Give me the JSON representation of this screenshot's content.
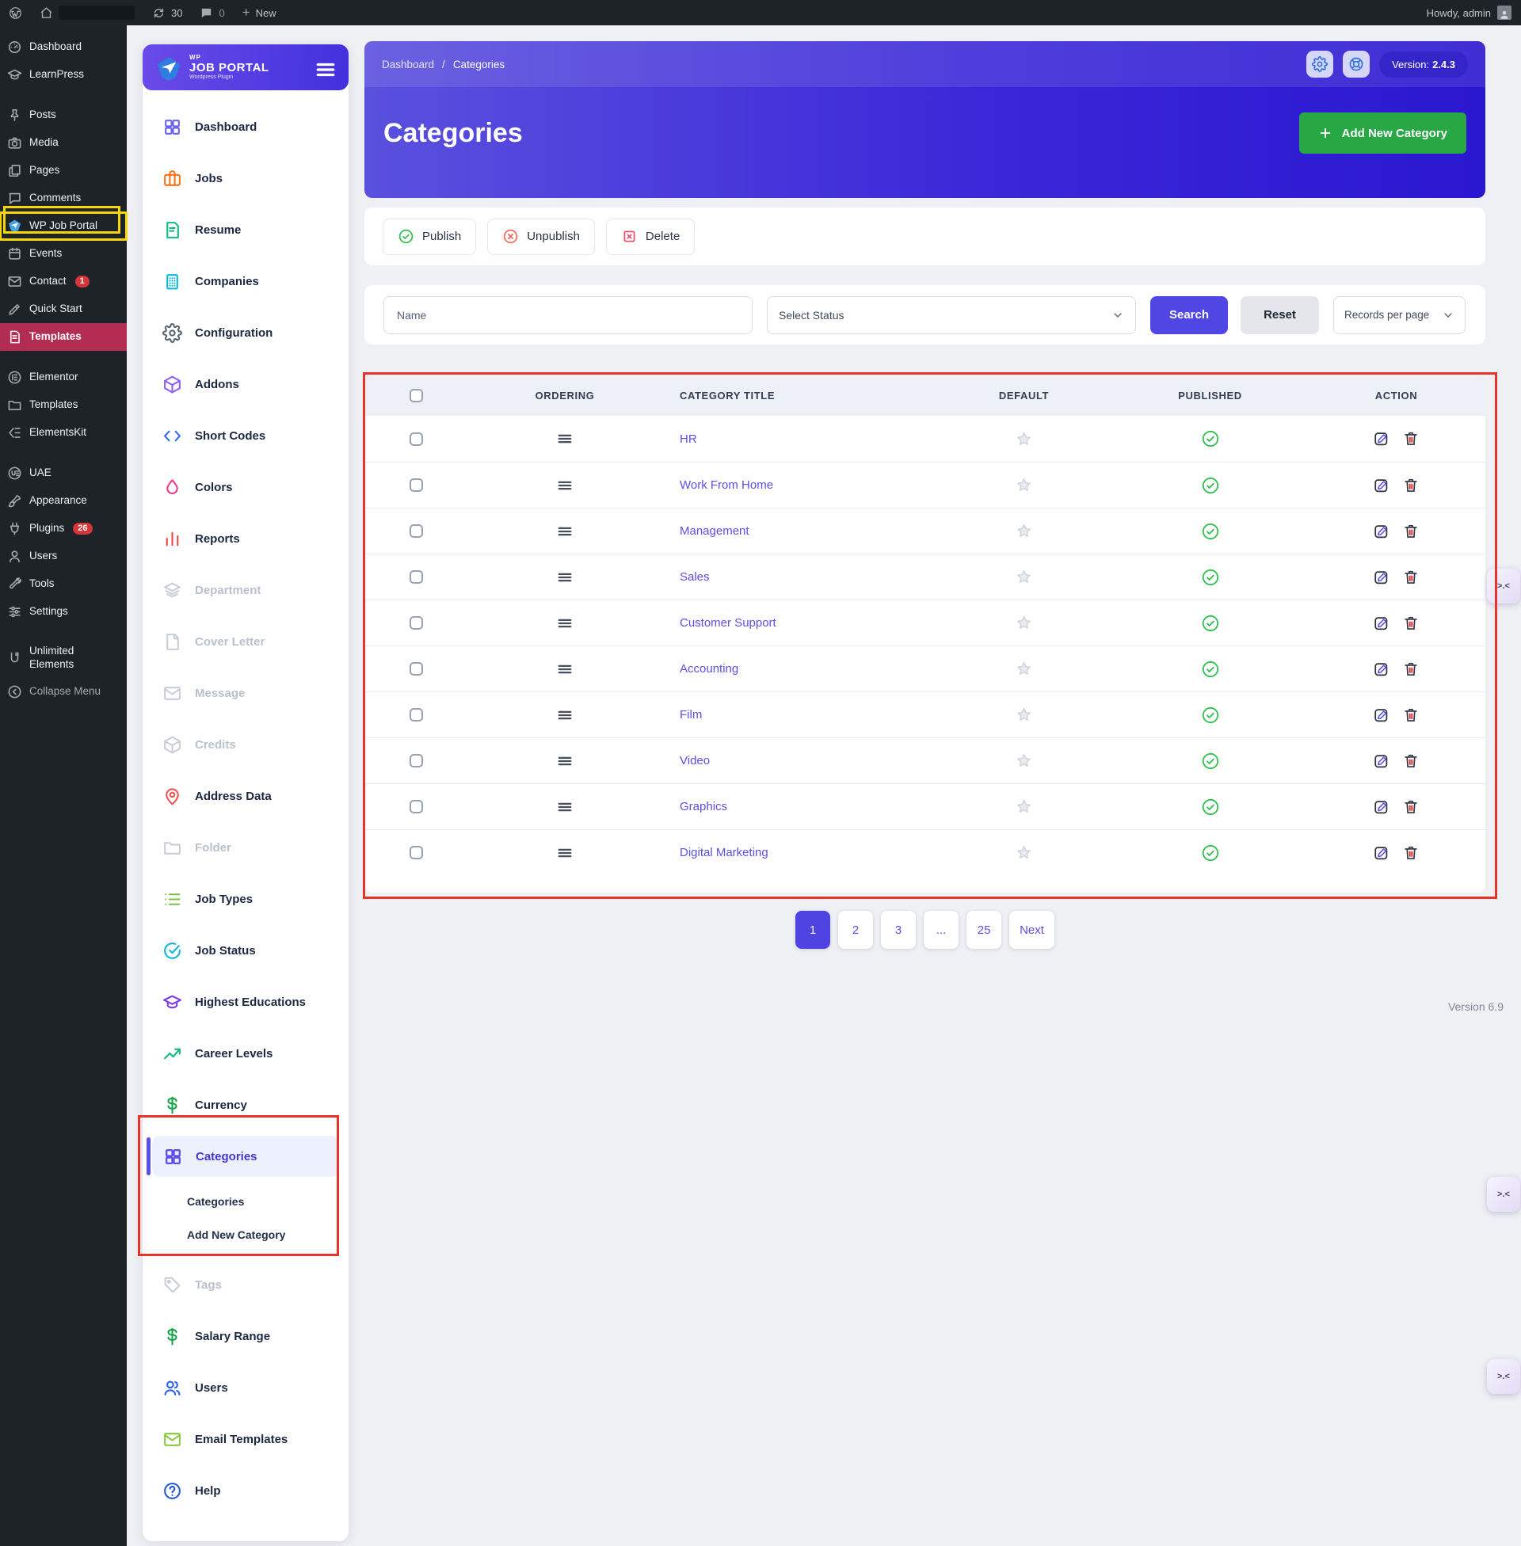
{
  "colors": {
    "accent": "#5046e4",
    "link": "#5b4fe6",
    "green": "#28a745",
    "pub": "#2fbf4f",
    "ann_red": "#e8332a",
    "ann_yellow": "#f5d609",
    "side_active": "#b32d52",
    "grad1": "#5a50de",
    "grad2": "#2a17d0"
  },
  "admin_bar": {
    "updates_count": "30",
    "comments_count": "0",
    "new_label": "New",
    "howdy": "Howdy, admin"
  },
  "wp_sidebar": {
    "items": [
      {
        "label": "Dashboard",
        "icon": "gauge"
      },
      {
        "label": "LearnPress",
        "icon": "mortarboard"
      },
      {
        "gap": true
      },
      {
        "label": "Posts",
        "icon": "pin"
      },
      {
        "label": "Media",
        "icon": "camera"
      },
      {
        "label": "Pages",
        "icon": "pages"
      },
      {
        "label": "Comments",
        "icon": "comment"
      },
      {
        "label": "WP Job Portal",
        "icon": "job-portal-plane",
        "state": "highlight"
      },
      {
        "label": "Events",
        "icon": "calendar"
      },
      {
        "label": "Contact",
        "icon": "envelope",
        "badge": "1"
      },
      {
        "label": "Quick Start",
        "icon": "pen"
      },
      {
        "label": "Templates",
        "icon": "document",
        "state": "active"
      },
      {
        "gap": true
      },
      {
        "label": "Elementor",
        "icon": "elementor"
      },
      {
        "label": "Templates",
        "icon": "folder"
      },
      {
        "label": "ElementsKit",
        "icon": "elementskit"
      },
      {
        "gap": true
      },
      {
        "label": "UAE",
        "icon": "uae"
      },
      {
        "label": "Appearance",
        "icon": "brush"
      },
      {
        "label": "Plugins",
        "icon": "plug",
        "badge": "26"
      },
      {
        "label": "Users",
        "icon": "user"
      },
      {
        "label": "Tools",
        "icon": "wrench"
      },
      {
        "label": "Settings",
        "icon": "sliders"
      },
      {
        "gap": true
      },
      {
        "label": "Unlimited Elements",
        "icon": "unlimited"
      },
      {
        "label": "Collapse Menu",
        "icon": "collapse",
        "state": "muted"
      }
    ]
  },
  "plugin_sidebar": {
    "brand": {
      "wp": "WP",
      "title": "JOB PORTAL",
      "subtitle": "Wordpress Plugin"
    },
    "menu_top": [
      {
        "label": "Dashboard",
        "icon": "grid",
        "color": "#6c63f0"
      },
      {
        "label": "Jobs",
        "icon": "briefcase",
        "color": "#f97316"
      },
      {
        "label": "Resume",
        "icon": "file-text",
        "color": "#10b981"
      },
      {
        "label": "Companies",
        "icon": "building",
        "color": "#08b8d4"
      },
      {
        "label": "Configuration",
        "icon": "gear",
        "color": "#5b6472"
      },
      {
        "label": "Addons",
        "icon": "cube",
        "color": "#8b5cf6"
      },
      {
        "label": "Short Codes",
        "icon": "code",
        "color": "#2f6bea"
      },
      {
        "label": "Colors",
        "icon": "droplet",
        "color": "#ea3c8e"
      },
      {
        "label": "Reports",
        "icon": "bar-chart",
        "color": "#ef4444"
      },
      {
        "label": "Department",
        "icon": "layers",
        "state": "disabled"
      },
      {
        "label": "Cover Letter",
        "icon": "file",
        "state": "disabled"
      },
      {
        "label": "Message",
        "icon": "mail",
        "state": "disabled"
      },
      {
        "label": "Credits",
        "icon": "cube",
        "state": "disabled"
      },
      {
        "label": "Address Data",
        "icon": "map-pin",
        "color": "#f05252"
      },
      {
        "label": "Folder",
        "icon": "folder",
        "state": "disabled"
      },
      {
        "label": "Job Types",
        "icon": "list",
        "color": "#7bc043"
      },
      {
        "label": "Job Status",
        "icon": "check-circle",
        "color": "#12b5d8"
      },
      {
        "label": "Highest Educations",
        "icon": "mortarboard",
        "color": "#7c3aed"
      },
      {
        "label": "Career Levels",
        "icon": "trend",
        "color": "#10b981"
      },
      {
        "label": "Currency",
        "icon": "dollar",
        "color": "#18a34a"
      }
    ],
    "active_item": "Categories",
    "submenu": [
      "Categories",
      "Add New Category"
    ],
    "menu_bottom": [
      {
        "label": "Tags",
        "icon": "tag",
        "state": "disabled"
      },
      {
        "label": "Salary Range",
        "icon": "dollar",
        "color": "#18a34a"
      },
      {
        "label": "Users",
        "icon": "users",
        "color": "#2563eb"
      },
      {
        "label": "Email Templates",
        "icon": "mail",
        "color": "#8bc83c"
      },
      {
        "label": "Help",
        "icon": "help",
        "color": "#2458d6"
      }
    ]
  },
  "header": {
    "breadcrumb_home": "Dashboard",
    "breadcrumb_sep": "/",
    "breadcrumb_current": "Categories",
    "version_label": "Version:",
    "version_value": "2.4.3",
    "title": "Categories",
    "add_button": "Add New Category"
  },
  "bulk_actions": {
    "publish": "Publish",
    "unpublish": "Unpublish",
    "delete": "Delete"
  },
  "filters": {
    "name_placeholder": "Name",
    "status_placeholder": "Select Status",
    "search": "Search",
    "reset": "Reset",
    "records_per_page": "Records per page"
  },
  "table": {
    "columns": [
      "ORDERING",
      "CATEGORY TITLE",
      "DEFAULT",
      "PUBLISHED",
      "ACTION"
    ],
    "rows": [
      {
        "title": "HR"
      },
      {
        "title": "Work From Home"
      },
      {
        "title": "Management"
      },
      {
        "title": "Sales"
      },
      {
        "title": "Customer Support"
      },
      {
        "title": "Accounting"
      },
      {
        "title": "Film"
      },
      {
        "title": "Video"
      },
      {
        "title": "Graphics"
      },
      {
        "title": "Digital Marketing"
      }
    ],
    "row_icons": [
      "drag-handle-icon",
      "star-icon",
      "published-check-icon",
      "edit-icon",
      "trash-icon"
    ]
  },
  "pagination": {
    "pages": [
      {
        "label": "1",
        "state": "active"
      },
      {
        "label": "2"
      },
      {
        "label": "3"
      },
      {
        "label": "..."
      },
      {
        "label": "25"
      },
      {
        "label": "Next"
      }
    ]
  },
  "footer": {
    "version": "Version 6.9"
  },
  "floating": {
    "face": ">.<"
  }
}
